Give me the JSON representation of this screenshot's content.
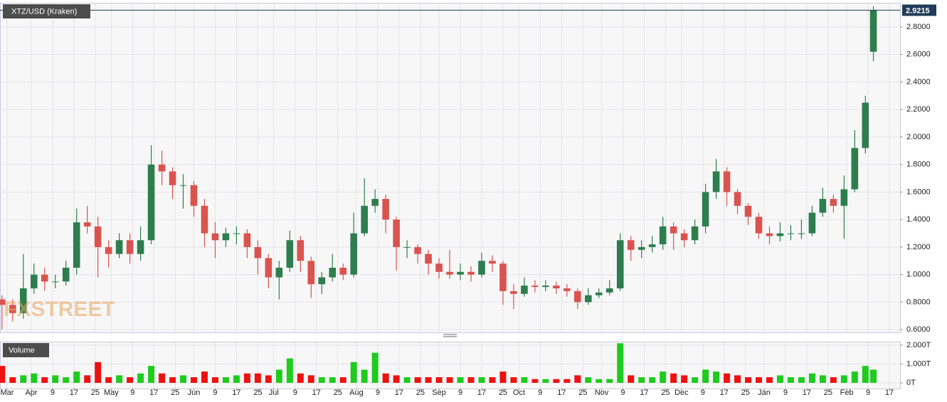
{
  "chart_data": [
    {
      "type": "candlestick",
      "title": "XTZ/USD (Kraken)",
      "watermark": "FXSTREET",
      "x": [
        -11,
        -7,
        -3,
        1,
        5,
        9,
        13,
        17,
        21,
        25,
        29,
        33,
        37,
        41,
        45,
        49,
        53,
        57,
        61,
        65,
        69,
        73,
        77,
        81,
        85,
        89,
        93,
        97,
        101,
        105,
        109,
        113,
        117,
        121,
        125,
        129,
        133,
        137,
        141,
        145,
        149,
        153,
        157,
        161,
        165,
        169,
        173,
        177,
        181,
        185,
        189,
        193,
        197,
        201,
        205,
        209,
        213,
        217,
        221,
        225,
        229,
        233,
        237,
        241,
        245,
        249,
        253,
        257,
        261,
        265,
        269,
        273,
        277,
        281,
        285,
        289,
        293,
        297,
        301,
        305,
        309,
        313,
        316
      ],
      "open": [
        0.82,
        0.78,
        0.72,
        0.9,
        1.0,
        0.95,
        0.95,
        1.05,
        1.38,
        1.35,
        1.2,
        1.15,
        1.25,
        1.15,
        1.25,
        1.8,
        1.75,
        1.65,
        1.65,
        1.5,
        1.3,
        1.25,
        1.3,
        1.3,
        1.2,
        1.12,
        0.98,
        1.05,
        1.25,
        1.1,
        0.93,
        0.98,
        1.05,
        1.0,
        1.3,
        1.5,
        1.55,
        1.4,
        1.2,
        1.2,
        1.15,
        1.08,
        1.02,
        1.0,
        1.02,
        1.0,
        1.1,
        1.08,
        0.88,
        0.86,
        0.92,
        0.91,
        0.92,
        0.9,
        0.88,
        0.8,
        0.85,
        0.87,
        0.9,
        1.25,
        1.18,
        1.2,
        1.22,
        1.35,
        1.3,
        1.25,
        1.35,
        1.6,
        1.75,
        1.6,
        1.5,
        1.42,
        1.3,
        1.28,
        1.3,
        1.3,
        1.3,
        1.45,
        1.55,
        1.5,
        1.62,
        1.92,
        2.62
      ],
      "high": [
        0.85,
        0.82,
        1.15,
        1.08,
        1.05,
        1.0,
        1.1,
        1.48,
        1.5,
        1.42,
        1.25,
        1.3,
        1.3,
        1.35,
        1.94,
        1.9,
        1.78,
        1.73,
        1.68,
        1.55,
        1.38,
        1.34,
        1.35,
        1.33,
        1.25,
        1.15,
        1.1,
        1.32,
        1.28,
        1.13,
        1.02,
        1.15,
        1.08,
        1.45,
        1.7,
        1.62,
        1.58,
        1.42,
        1.25,
        1.22,
        1.18,
        1.12,
        1.18,
        1.08,
        1.06,
        1.16,
        1.14,
        1.1,
        0.93,
        0.98,
        0.96,
        0.96,
        0.95,
        0.93,
        0.9,
        0.9,
        0.9,
        0.96,
        1.3,
        1.28,
        1.25,
        1.28,
        1.42,
        1.38,
        1.33,
        1.4,
        1.66,
        1.84,
        1.78,
        1.62,
        1.52,
        1.45,
        1.35,
        1.38,
        1.36,
        1.4,
        1.5,
        1.63,
        1.58,
        1.72,
        2.05,
        2.3,
        2.95
      ],
      "low": [
        0.6,
        0.66,
        0.68,
        0.86,
        0.88,
        0.9,
        0.92,
        1.0,
        1.3,
        0.98,
        1.05,
        1.12,
        1.08,
        1.1,
        1.22,
        1.65,
        1.55,
        1.48,
        1.42,
        1.2,
        1.12,
        1.2,
        1.22,
        1.12,
        1.0,
        0.9,
        0.82,
        1.02,
        1.02,
        0.83,
        0.86,
        0.95,
        0.96,
        0.98,
        1.28,
        1.45,
        1.3,
        1.03,
        1.12,
        1.08,
        1.0,
        0.97,
        0.97,
        0.96,
        0.95,
        0.98,
        1.02,
        0.78,
        0.75,
        0.84,
        0.87,
        0.88,
        0.86,
        0.84,
        0.75,
        0.78,
        0.83,
        0.85,
        0.88,
        1.1,
        1.12,
        1.16,
        1.18,
        1.18,
        1.2,
        1.22,
        1.3,
        1.55,
        1.5,
        1.44,
        1.36,
        1.26,
        1.22,
        1.24,
        1.25,
        1.26,
        1.28,
        1.42,
        1.45,
        1.26,
        1.6,
        1.88,
        2.55
      ],
      "close": [
        0.78,
        0.72,
        0.9,
        1.0,
        0.95,
        0.95,
        1.05,
        1.38,
        1.35,
        1.2,
        1.15,
        1.25,
        1.15,
        1.25,
        1.8,
        1.75,
        1.65,
        1.65,
        1.5,
        1.3,
        1.25,
        1.3,
        1.3,
        1.2,
        1.12,
        0.98,
        1.05,
        1.25,
        1.1,
        0.93,
        0.98,
        1.05,
        1.0,
        1.3,
        1.5,
        1.55,
        1.4,
        1.2,
        1.2,
        1.15,
        1.08,
        1.02,
        1.0,
        1.02,
        1.0,
        1.1,
        1.08,
        0.88,
        0.86,
        0.92,
        0.91,
        0.92,
        0.9,
        0.88,
        0.8,
        0.85,
        0.87,
        0.9,
        1.25,
        1.18,
        1.2,
        1.22,
        1.35,
        1.3,
        1.25,
        1.35,
        1.6,
        1.75,
        1.6,
        1.5,
        1.42,
        1.3,
        1.28,
        1.3,
        1.3,
        1.3,
        1.45,
        1.55,
        1.5,
        1.62,
        1.92,
        2.25,
        2.9215
      ],
      "up_color": "#2e7d4f",
      "down_color": "#d9534f",
      "last_color": "#1f3b57",
      "xlim": [
        -11.75,
        326
      ],
      "ylim": [
        0.58,
        2.97
      ],
      "yticks": [
        {
          "value": 0.6,
          "label": "0.6000"
        },
        {
          "value": 0.8,
          "label": "0.8000"
        },
        {
          "value": 1.0,
          "label": "1.0000"
        },
        {
          "value": 1.2,
          "label": "1.2000"
        },
        {
          "value": 1.4,
          "label": "1.4000"
        },
        {
          "value": 1.6,
          "label": "1.6000"
        },
        {
          "value": 1.8,
          "label": "1.8000"
        },
        {
          "value": 2.0,
          "label": "2.0000"
        },
        {
          "value": 2.2,
          "label": "2.2000"
        },
        {
          "value": 2.4,
          "label": "2.4000"
        },
        {
          "value": 2.6,
          "label": "2.6000"
        },
        {
          "value": 2.8,
          "label": "2.8000"
        }
      ],
      "grid": true
    },
    {
      "type": "bar",
      "title": "Volume",
      "x": [
        -11,
        -7,
        -3,
        1,
        5,
        9,
        13,
        17,
        21,
        25,
        29,
        33,
        37,
        41,
        45,
        49,
        53,
        57,
        61,
        65,
        69,
        73,
        77,
        81,
        85,
        89,
        93,
        97,
        101,
        105,
        109,
        113,
        117,
        121,
        125,
        129,
        133,
        137,
        141,
        145,
        149,
        153,
        157,
        161,
        165,
        169,
        173,
        177,
        181,
        185,
        189,
        193,
        197,
        201,
        205,
        209,
        213,
        217,
        221,
        225,
        229,
        233,
        237,
        241,
        245,
        249,
        253,
        257,
        261,
        265,
        269,
        273,
        277,
        281,
        285,
        289,
        293,
        297,
        301,
        305,
        309,
        313,
        316
      ],
      "values": [
        0.9,
        0.3,
        0.4,
        0.5,
        0.3,
        0.4,
        0.3,
        0.6,
        0.4,
        1.1,
        0.3,
        0.4,
        0.3,
        0.5,
        0.9,
        0.5,
        0.3,
        0.4,
        0.3,
        0.6,
        0.3,
        0.3,
        0.4,
        0.5,
        0.5,
        0.4,
        0.7,
        1.3,
        0.5,
        0.4,
        0.3,
        0.3,
        0.3,
        1.1,
        0.7,
        1.6,
        0.5,
        0.4,
        0.3,
        0.3,
        0.3,
        0.3,
        0.3,
        0.3,
        0.3,
        0.3,
        0.3,
        0.6,
        0.3,
        0.3,
        0.2,
        0.2,
        0.2,
        0.2,
        0.4,
        0.3,
        0.2,
        0.2,
        2.1,
        0.4,
        0.3,
        0.3,
        0.6,
        0.5,
        0.4,
        0.3,
        0.7,
        0.6,
        0.5,
        0.4,
        0.3,
        0.3,
        0.3,
        0.4,
        0.3,
        0.3,
        0.5,
        0.4,
        0.3,
        0.4,
        0.6,
        0.9,
        0.7
      ],
      "up_color": "#1ecb1e",
      "down_color": "#ee1111",
      "xlim": [
        -11.75,
        326
      ],
      "ylim": [
        -0.3,
        2.15
      ],
      "yticks": [
        {
          "value": 0,
          "label": "0T"
        },
        {
          "value": 1,
          "label": "1.000T"
        },
        {
          "value": 2,
          "label": "2.000T"
        }
      ],
      "xticks": [
        {
          "value": -9.1,
          "label": "Mar"
        },
        {
          "value": 0,
          "label": "Apr"
        },
        {
          "value": 8,
          "label": "9"
        },
        {
          "value": 16,
          "label": "17"
        },
        {
          "value": 24,
          "label": "25"
        },
        {
          "value": 30,
          "label": "May"
        },
        {
          "value": 38,
          "label": "9"
        },
        {
          "value": 46,
          "label": "17"
        },
        {
          "value": 54,
          "label": "25"
        },
        {
          "value": 61,
          "label": "Jun"
        },
        {
          "value": 69,
          "label": "9"
        },
        {
          "value": 77,
          "label": "17"
        },
        {
          "value": 85,
          "label": "25"
        },
        {
          "value": 91,
          "label": "Jul"
        },
        {
          "value": 99,
          "label": "9"
        },
        {
          "value": 107,
          "label": "17"
        },
        {
          "value": 115,
          "label": "25"
        },
        {
          "value": 122,
          "label": "Aug"
        },
        {
          "value": 130,
          "label": "9"
        },
        {
          "value": 138,
          "label": "17"
        },
        {
          "value": 146,
          "label": "25"
        },
        {
          "value": 153,
          "label": "Sep"
        },
        {
          "value": 161,
          "label": "9"
        },
        {
          "value": 169,
          "label": "17"
        },
        {
          "value": 177,
          "label": "25"
        },
        {
          "value": 183,
          "label": "Oct"
        },
        {
          "value": 191,
          "label": "9"
        },
        {
          "value": 199,
          "label": "17"
        },
        {
          "value": 207,
          "label": "25"
        },
        {
          "value": 214,
          "label": "Nov"
        },
        {
          "value": 222,
          "label": "9"
        },
        {
          "value": 230,
          "label": "17"
        },
        {
          "value": 238,
          "label": "25"
        },
        {
          "value": 244,
          "label": "Dec"
        },
        {
          "value": 252,
          "label": "9"
        },
        {
          "value": 260,
          "label": "17"
        },
        {
          "value": 268,
          "label": "25"
        },
        {
          "value": 275,
          "label": "Jan"
        },
        {
          "value": 283,
          "label": "9"
        },
        {
          "value": 291,
          "label": "17"
        },
        {
          "value": 299,
          "label": "25"
        },
        {
          "value": 306,
          "label": "Feb"
        },
        {
          "value": 314,
          "label": "9"
        },
        {
          "value": 322,
          "label": "17"
        }
      ],
      "grid": true
    }
  ]
}
